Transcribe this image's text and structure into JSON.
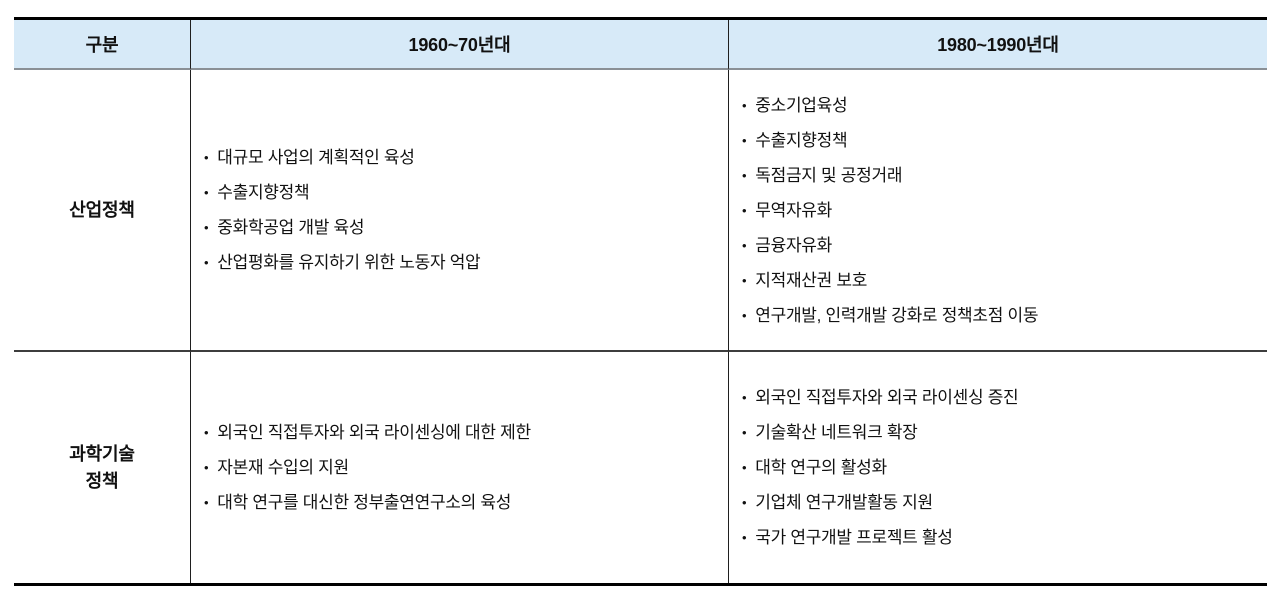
{
  "bullet_char": "•",
  "colors": {
    "header_bg": "#d7eaf8",
    "border_black": "#000000",
    "header_underline": "#8a9096",
    "row_separator": "#3d3d3d",
    "grid_line": "#1f1f1f",
    "text_color": "#111111"
  },
  "table": {
    "header": {
      "col_category": "구분",
      "col_period1": "1960~70년대",
      "col_period2": "1980~1990년대"
    },
    "rows": [
      {
        "label_lines": [
          "산업정책"
        ],
        "period1_items": [
          "대규모 사업의 계획적인 육성",
          "수출지향정책",
          "중화학공업 개발 육성",
          "산업평화를 유지하기 위한 노동자 억압"
        ],
        "period2_items": [
          "중소기업육성",
          "수출지향정책",
          "독점금지 및 공정거래",
          "무역자유화",
          "금융자유화",
          "지적재산권 보호",
          "연구개발, 인력개발 강화로 정책초점 이동"
        ]
      },
      {
        "label_lines": [
          "과학기술",
          "정책"
        ],
        "period1_items": [
          "외국인 직접투자와 외국 라이센싱에 대한 제한",
          "자본재 수입의 지원",
          "대학 연구를 대신한 정부출연연구소의 육성"
        ],
        "period2_items": [
          "외국인 직접투자와 외국 라이센싱 증진",
          "기술확산 네트워크 확장",
          "대학 연구의 활성화",
          "기업체 연구개발활동 지원",
          "국가 연구개발 프로젝트 활성"
        ]
      }
    ]
  }
}
